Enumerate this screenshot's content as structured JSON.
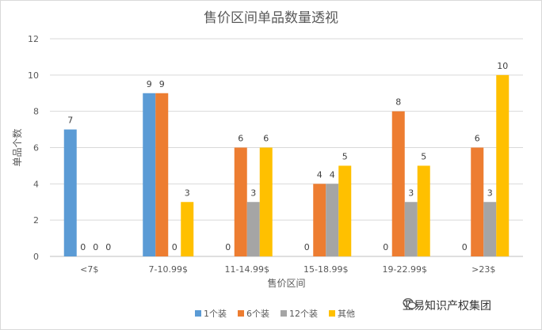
{
  "chart_data": {
    "type": "bar",
    "title": "售价区间单品数量透视",
    "xlabel": "售价区间",
    "ylabel": "单品个数",
    "ylim": [
      0,
      12
    ],
    "yticks": [
      0,
      2,
      4,
      6,
      8,
      10,
      12
    ],
    "grid": true,
    "legend_position": "bottom",
    "categories": [
      "<7$",
      "7-10.99$",
      "11-14.99$",
      "15-18.99$",
      "19-22.99$",
      ">23$"
    ],
    "series": [
      {
        "name": "1个装",
        "color": "#5b9bd5",
        "values": [
          7,
          9,
          0,
          0,
          0,
          0
        ]
      },
      {
        "name": "6个装",
        "color": "#ed7d31",
        "values": [
          0,
          9,
          6,
          4,
          8,
          6
        ]
      },
      {
        "name": "12个装",
        "color": "#a5a5a5",
        "values": [
          0,
          0,
          3,
          4,
          3,
          3
        ]
      },
      {
        "name": "其他",
        "color": "#ffc000",
        "values": [
          0,
          3,
          6,
          5,
          5,
          10
        ]
      }
    ]
  },
  "watermark": {
    "text": "亚易知识产权集团",
    "icon": "wechat-icon"
  }
}
